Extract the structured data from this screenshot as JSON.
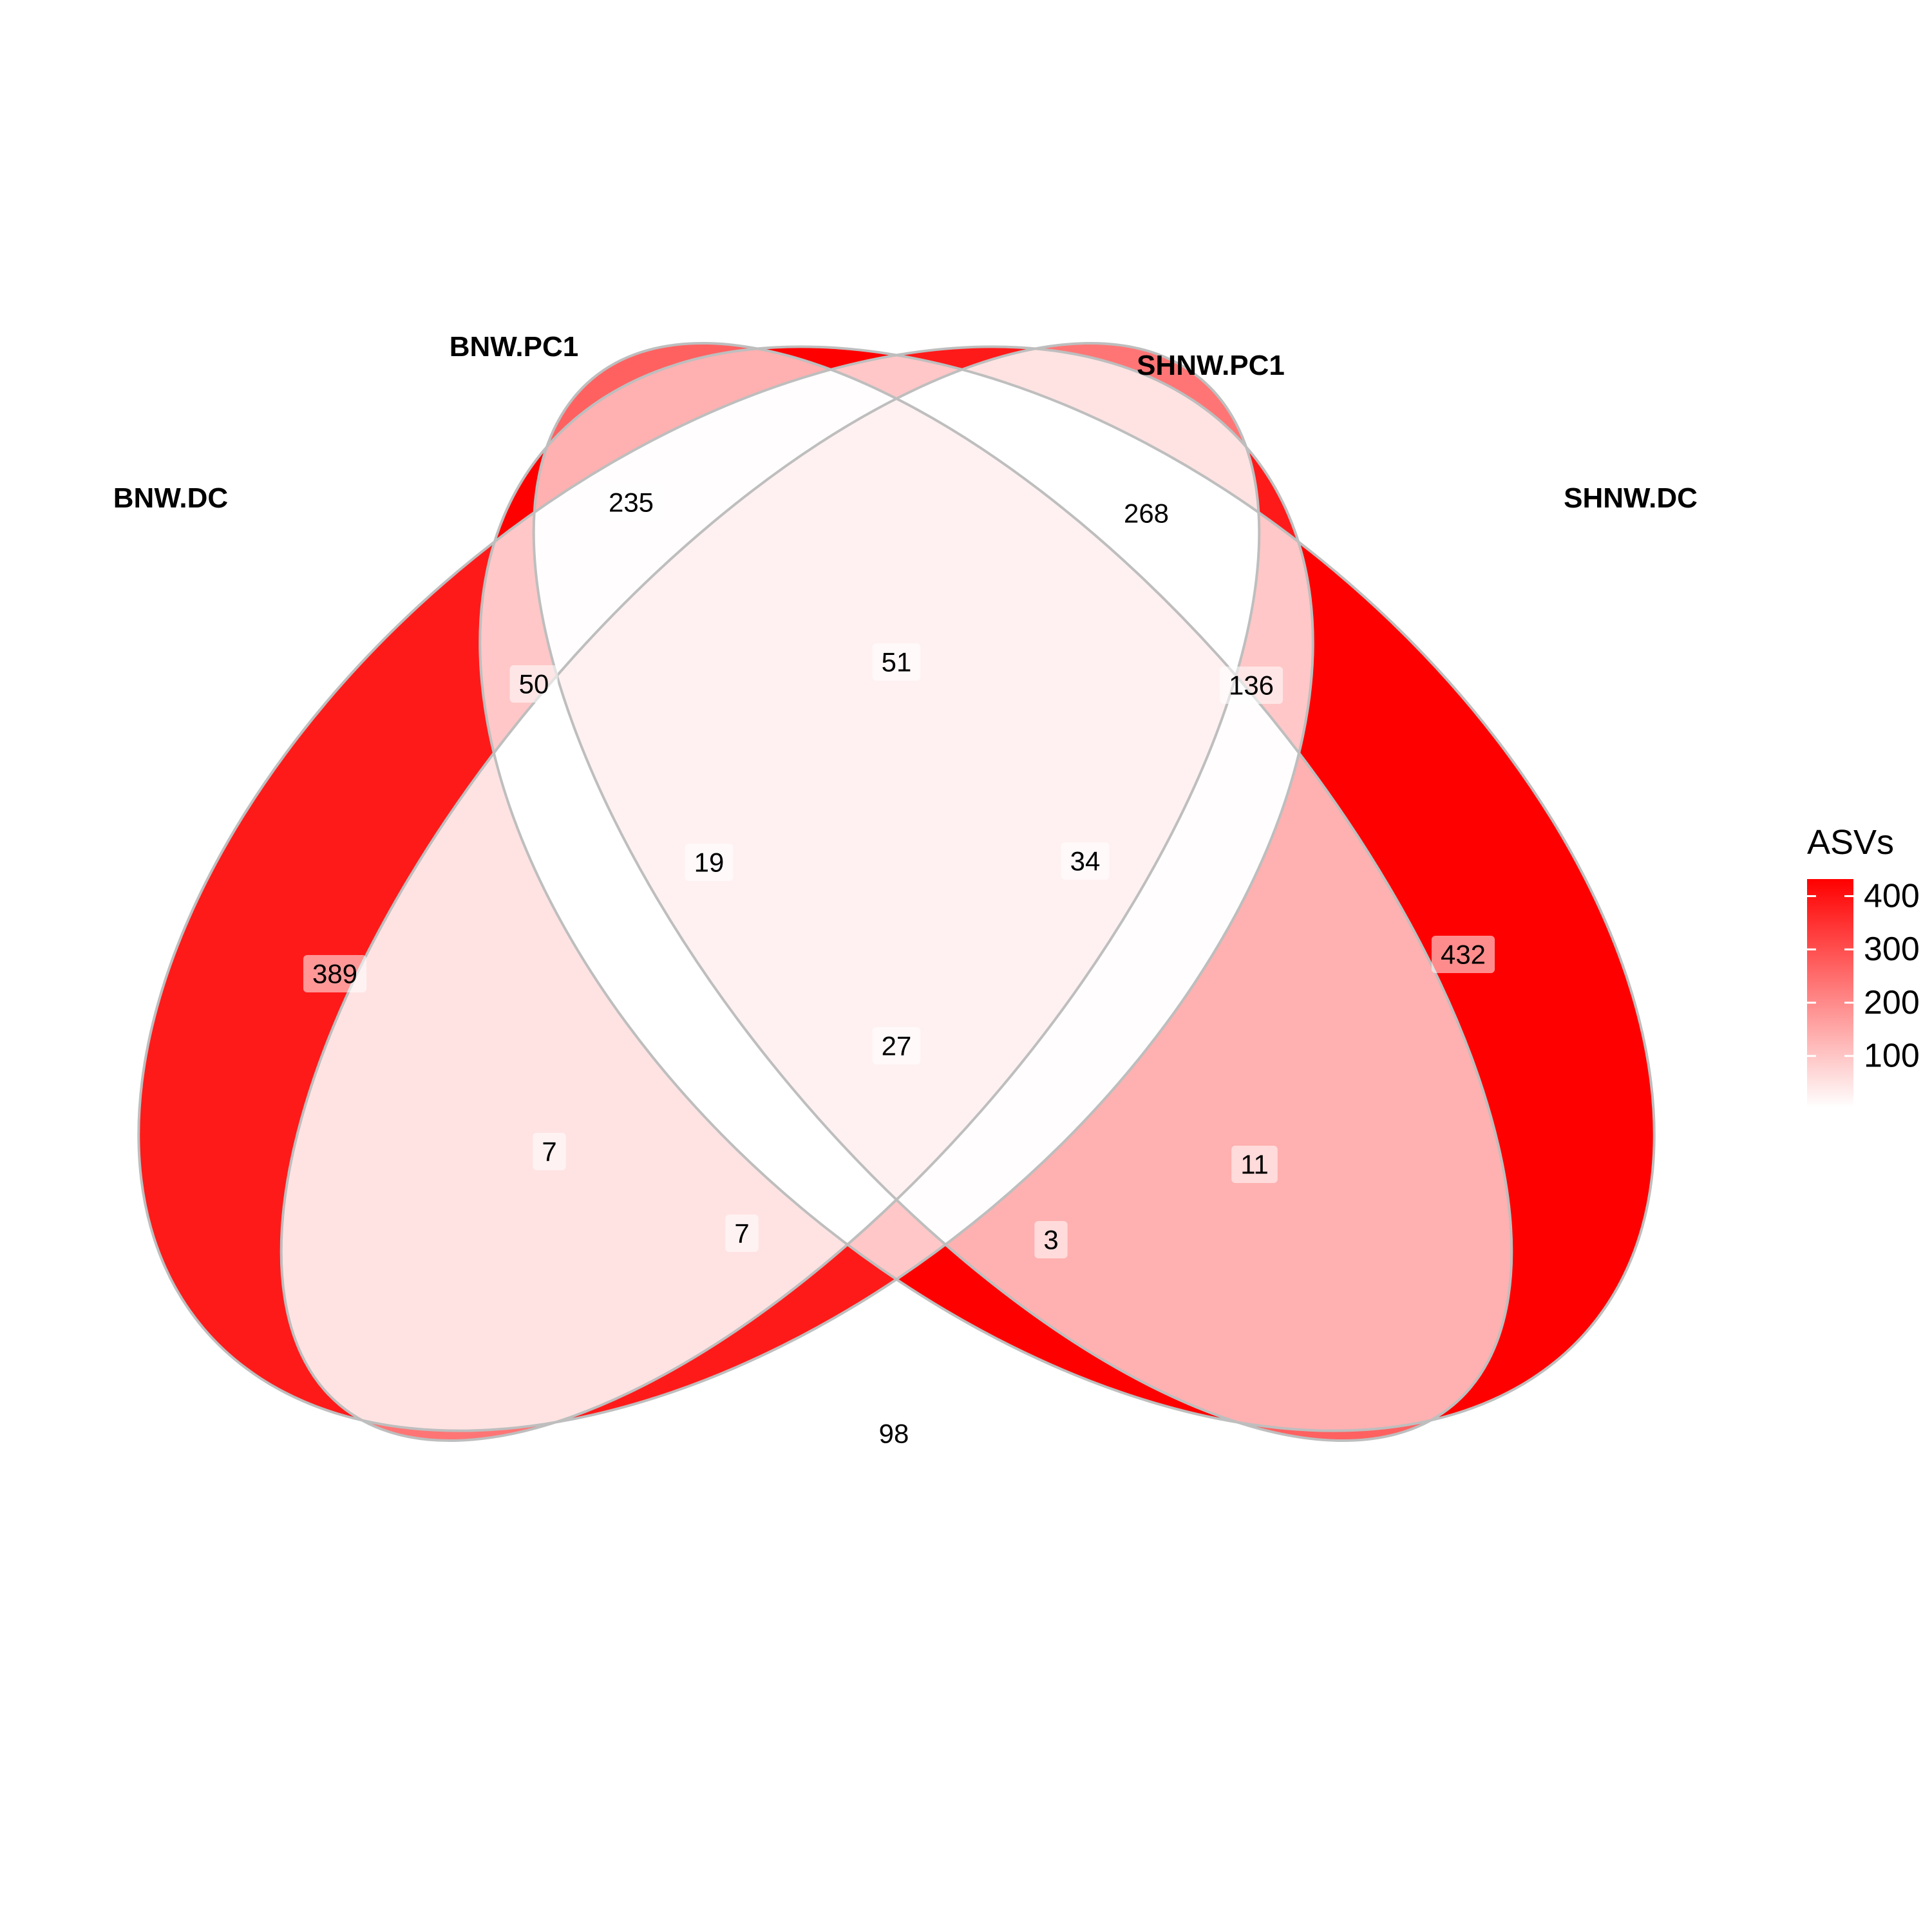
{
  "chart_data": {
    "type": "venn",
    "sets": [
      "BNW.DC",
      "BNW.PC1",
      "SHNW.PC1",
      "SHNW.DC"
    ],
    "regions": [
      {
        "sets": [
          "BNW.DC"
        ],
        "value": 389
      },
      {
        "sets": [
          "BNW.PC1"
        ],
        "value": 235
      },
      {
        "sets": [
          "SHNW.PC1"
        ],
        "value": 268
      },
      {
        "sets": [
          "SHNW.DC"
        ],
        "value": 432
      },
      {
        "sets": [
          "BNW.DC",
          "BNW.PC1"
        ],
        "value": 50
      },
      {
        "sets": [
          "BNW.PC1",
          "SHNW.PC1"
        ],
        "value": 51
      },
      {
        "sets": [
          "SHNW.PC1",
          "SHNW.DC"
        ],
        "value": 136
      },
      {
        "sets": [
          "BNW.DC",
          "BNW.PC1",
          "SHNW.PC1"
        ],
        "value": 19
      },
      {
        "sets": [
          "BNW.PC1",
          "SHNW.PC1",
          "SHNW.DC"
        ],
        "value": 34
      },
      {
        "sets": [
          "BNW.DC",
          "BNW.PC1",
          "SHNW.PC1",
          "SHNW.DC"
        ],
        "value": 27
      },
      {
        "sets": [
          "BNW.DC",
          "SHNW.PC1"
        ],
        "value": 7
      },
      {
        "sets": [
          "BNW.DC",
          "SHNW.PC1",
          "SHNW.DC"
        ],
        "value": 7
      },
      {
        "sets": [
          "BNW.DC",
          "BNW.PC1",
          "SHNW.DC"
        ],
        "value": 3
      },
      {
        "sets": [
          "BNW.PC1",
          "SHNW.DC"
        ],
        "value": 11
      },
      {
        "sets": [
          "BNW.DC",
          "SHNW.DC"
        ],
        "value": 98
      }
    ],
    "legend": {
      "title": "ASVs",
      "ticks": [
        100,
        200,
        300,
        400
      ],
      "range": [
        3,
        432
      ],
      "low_color": "#FFFFFF",
      "high_color": "#FF0000",
      "placement": "right"
    },
    "outline_color": "#BEBEBE"
  }
}
